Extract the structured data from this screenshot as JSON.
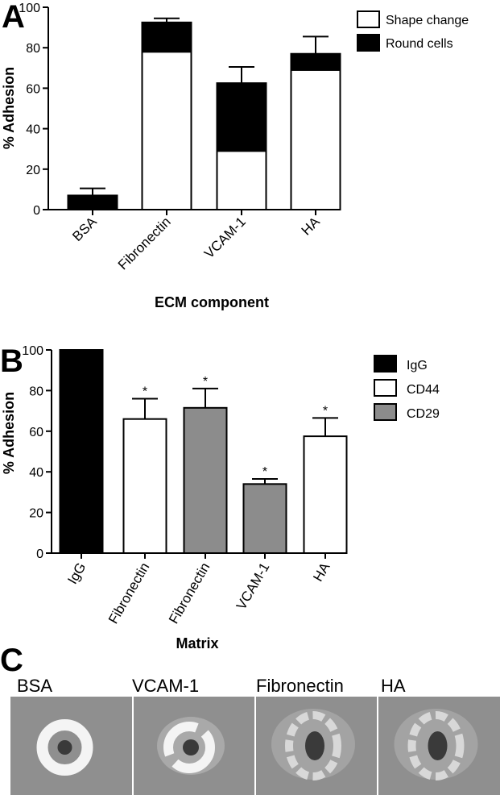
{
  "colors": {
    "black": "#000000",
    "white": "#ffffff",
    "grey": "#8c8c8c",
    "photo_bg": "#8f8f8f",
    "ring": "#f4f4f4",
    "nucleus": "#3a3a3a"
  },
  "chart_data": [
    {
      "panel_label": "A",
      "type": "bar",
      "stacked": true,
      "categories": [
        "BSA",
        "Fibronectin",
        "VCAM-1",
        "HA"
      ],
      "series": [
        {
          "name": "Shape change",
          "color": "#ffffff",
          "values": [
            0,
            78,
            29,
            69
          ]
        },
        {
          "name": "Round cells",
          "color": "#000000",
          "values": [
            7,
            14.5,
            33.5,
            8
          ]
        }
      ],
      "error_tops": [
        10.5,
        94.5,
        70.5,
        85.5
      ],
      "xlabel": "ECM component",
      "ylabel": "% Adhesion",
      "ylim": [
        0,
        100
      ],
      "yticks": [
        0,
        20,
        40,
        60,
        80,
        100
      ],
      "grid": false,
      "legend": "top-right"
    },
    {
      "panel_label": "B",
      "type": "bar",
      "stacked": false,
      "categories": [
        "IgG",
        "Fibronectin",
        "Fibronectin",
        "VCAM-1",
        "HA"
      ],
      "values": [
        100,
        66,
        71.5,
        34,
        57.5
      ],
      "errors": [
        0,
        10,
        9.5,
        2.5,
        9
      ],
      "bar_series": [
        "IgG",
        "CD44",
        "CD29",
        "CD29",
        "CD44"
      ],
      "significance": [
        "",
        "*",
        "*",
        "*",
        "*"
      ],
      "legend_entries": [
        {
          "name": "IgG",
          "color": "#000000"
        },
        {
          "name": "CD44",
          "color": "#ffffff"
        },
        {
          "name": "CD29",
          "color": "#8c8c8c"
        }
      ],
      "xlabel": "Matrix",
      "ylabel": "% Adhesion",
      "ylim": [
        0,
        100
      ],
      "yticks": [
        0,
        20,
        40,
        60,
        80,
        100
      ],
      "grid": false,
      "legend": "top-right"
    }
  ],
  "panel_c": {
    "panel_label": "C",
    "images": [
      {
        "label": "BSA",
        "morphology": "round"
      },
      {
        "label": "VCAM-1",
        "morphology": "partially-spread"
      },
      {
        "label": "Fibronectin",
        "morphology": "spread"
      },
      {
        "label": "HA",
        "morphology": "spread"
      }
    ]
  }
}
